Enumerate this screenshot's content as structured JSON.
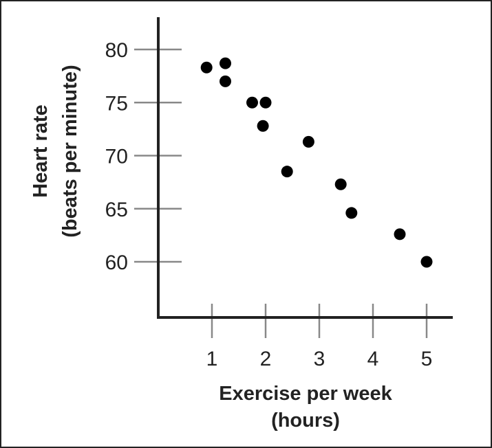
{
  "chart_data": {
    "type": "scatter",
    "title": "",
    "xlabel_lines": [
      "Exercise per week",
      "(hours)"
    ],
    "ylabel_lines": [
      "Heart rate",
      "(beats per minute)"
    ],
    "x_ticks": [
      1,
      2,
      3,
      4,
      5
    ],
    "y_ticks": [
      60,
      65,
      70,
      75,
      80
    ],
    "xlim": [
      0,
      5.5
    ],
    "ylim": [
      55,
      85
    ],
    "grid": false,
    "marker_color": "#000000",
    "axis_color": "#222222",
    "points": [
      {
        "x": 0.9,
        "y": 78.3
      },
      {
        "x": 1.25,
        "y": 78.7
      },
      {
        "x": 1.25,
        "y": 77.0
      },
      {
        "x": 1.75,
        "y": 75.0
      },
      {
        "x": 2.0,
        "y": 75.0
      },
      {
        "x": 1.95,
        "y": 72.8
      },
      {
        "x": 2.4,
        "y": 68.5
      },
      {
        "x": 2.8,
        "y": 71.3
      },
      {
        "x": 3.4,
        "y": 67.3
      },
      {
        "x": 3.6,
        "y": 64.6
      },
      {
        "x": 4.5,
        "y": 62.6
      },
      {
        "x": 5.0,
        "y": 60.0
      }
    ]
  }
}
